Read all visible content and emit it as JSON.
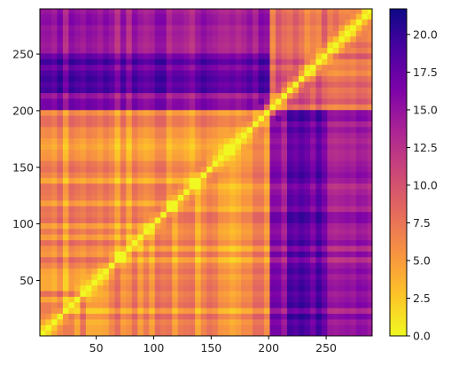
{
  "chart_data": {
    "type": "heatmap",
    "title": "",
    "xlabel": "",
    "ylabel": "",
    "xlim": [
      1,
      290
    ],
    "ylim": [
      1,
      290
    ],
    "x_ticks": [
      50,
      100,
      150,
      200,
      250
    ],
    "y_ticks": [
      50,
      100,
      150,
      200,
      250
    ],
    "y_axis_origin": "lower",
    "colormap": "plasma_r",
    "colorbar": {
      "min": 0.0,
      "max": 21.7,
      "ticks": [
        0.0,
        2.5,
        5.0,
        7.5,
        10.0,
        12.5,
        15.0,
        17.5,
        20.0
      ],
      "tick_labels": [
        "0.0",
        "2.5",
        "5.0",
        "7.5",
        "10.0",
        "12.5",
        "15.0",
        "17.5",
        "20.0"
      ]
    },
    "matrix_description": "symmetric pairwise distance matrix, zero diagonal",
    "block_levels": {
      "diagonal": 0.0,
      "region_1_200_vs_1_200": 5.5,
      "region_1_200_vs_205_290": 15.5,
      "region_205_290_vs_205_290": 9.0,
      "band_215_250_vs_1_200": 17.5
    },
    "grid": false,
    "legend": "colorbar-right"
  }
}
